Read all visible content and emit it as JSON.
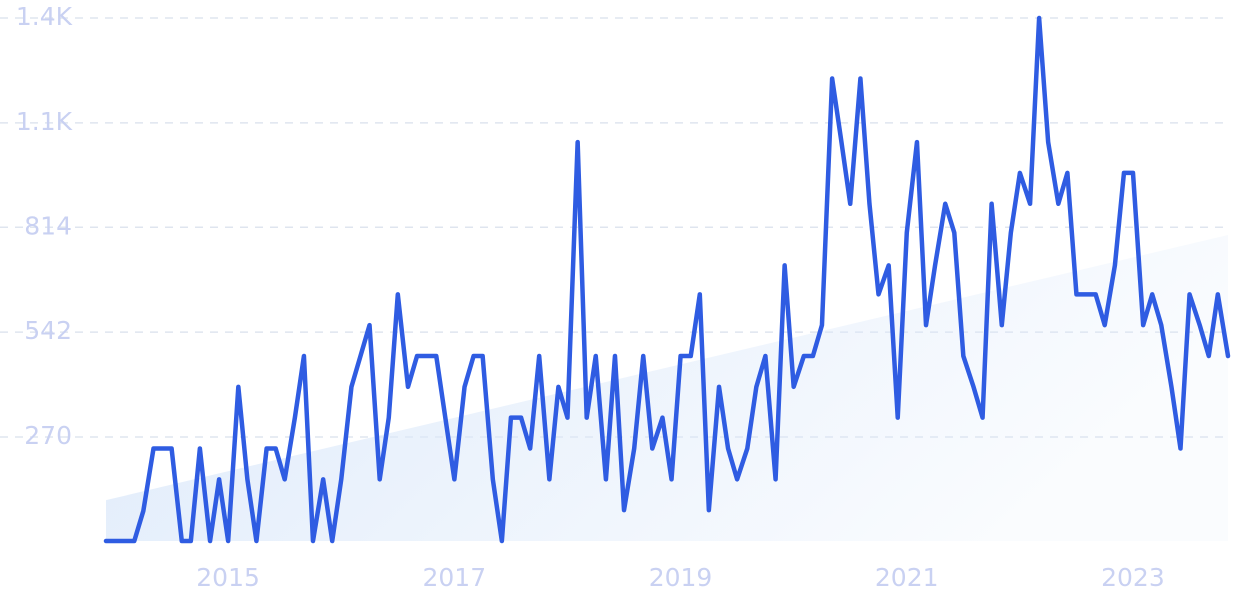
{
  "chart_data": {
    "type": "line",
    "x": [
      2014.0,
      2014.08,
      2014.17,
      2014.25,
      2014.33,
      2014.42,
      2014.5,
      2014.58,
      2014.67,
      2014.75,
      2014.83,
      2014.92,
      2015.0,
      2015.08,
      2015.17,
      2015.25,
      2015.33,
      2015.42,
      2015.5,
      2015.58,
      2015.67,
      2015.75,
      2015.83,
      2015.92,
      2016.0,
      2016.08,
      2016.17,
      2016.25,
      2016.33,
      2016.42,
      2016.5,
      2016.58,
      2016.67,
      2016.75,
      2016.83,
      2016.92,
      2017.0,
      2017.08,
      2017.17,
      2017.25,
      2017.33,
      2017.42,
      2017.5,
      2017.58,
      2017.67,
      2017.75,
      2017.83,
      2017.92,
      2018.0,
      2018.08,
      2018.17,
      2018.25,
      2018.33,
      2018.42,
      2018.5,
      2018.58,
      2018.67,
      2018.75,
      2018.83,
      2018.92,
      2019.0,
      2019.08,
      2019.17,
      2019.25,
      2019.33,
      2019.42,
      2019.5,
      2019.58,
      2019.67,
      2019.75,
      2019.83,
      2019.92,
      2020.0,
      2020.08,
      2020.17,
      2020.25,
      2020.33,
      2020.42,
      2020.5,
      2020.58,
      2020.67,
      2020.75,
      2020.83,
      2020.92,
      2021.0,
      2021.08,
      2021.17,
      2021.25,
      2021.33,
      2021.42,
      2021.5,
      2021.58,
      2021.67,
      2021.75,
      2021.83,
      2021.92,
      2022.0,
      2022.08,
      2022.17,
      2022.25,
      2022.33,
      2022.42,
      2022.5,
      2022.58,
      2022.67,
      2022.75,
      2022.83,
      2022.92,
      2023.0,
      2023.08,
      2023.17,
      2023.25,
      2023.33,
      2023.42,
      2023.5,
      2023.58,
      2023.67,
      2023.75,
      2023.83,
      2023.92
    ],
    "series": [
      {
        "color": "#2f5ce2",
        "values": [
          0,
          0,
          0,
          0,
          78,
          240,
          240,
          240,
          0,
          0,
          240,
          0,
          160,
          0,
          400,
          160,
          0,
          240,
          240,
          160,
          320,
          480,
          0,
          160,
          0,
          160,
          400,
          480,
          560,
          160,
          320,
          640,
          400,
          480,
          480,
          480,
          320,
          160,
          400,
          480,
          480,
          160,
          0,
          320,
          320,
          240,
          480,
          160,
          400,
          320,
          1035,
          320,
          480,
          160,
          480,
          80,
          240,
          480,
          240,
          320,
          160,
          480,
          480,
          640,
          80,
          400,
          240,
          160,
          240,
          400,
          480,
          160,
          715,
          400,
          480,
          480,
          560,
          1200,
          1040,
          875,
          1200,
          875,
          640,
          715,
          320,
          800,
          1035,
          560,
          715,
          875,
          800,
          480,
          400,
          320,
          875,
          560,
          800,
          955,
          875,
          1357,
          1035,
          875,
          955,
          640,
          640,
          640,
          560,
          715,
          955,
          955,
          560,
          640,
          560,
          400,
          240,
          640,
          560,
          480,
          640,
          480
        ]
      }
    ],
    "trend": {
      "color": "#dce9fa",
      "x": [
        2014.0,
        2023.92
      ],
      "values": [
        106,
        794
      ]
    },
    "xlim": [
      2014.0,
      2023.92
    ],
    "xticks": [
      2015,
      2017,
      2019,
      2021,
      2023
    ],
    "ylim": [
      0,
      1357
    ],
    "yticks": [
      270,
      542,
      814,
      {
        "value": 1085,
        "label": "1.1K"
      },
      {
        "value": 1357,
        "label": "1.4K"
      }
    ],
    "grid": true
  }
}
